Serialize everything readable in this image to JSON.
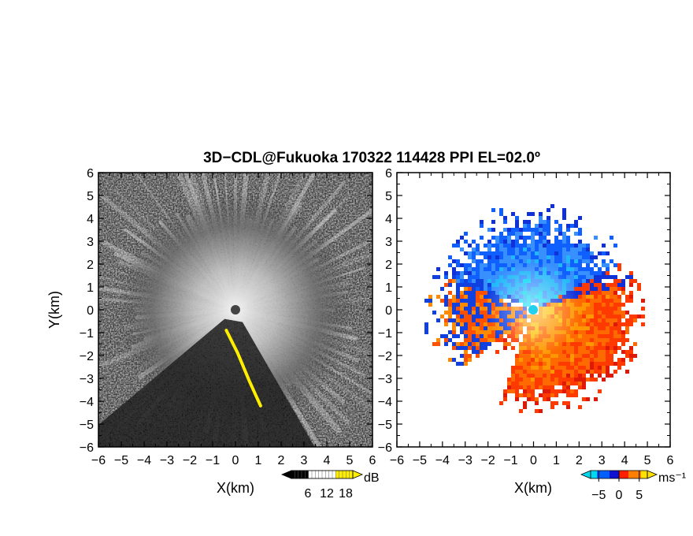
{
  "title": "3D−CDL@Fukuoka 170322 114428 PPI EL=02.0º",
  "chart_data": [
    {
      "type": "heatmap",
      "panel": "left",
      "field": "backscatter intensity (PPI)",
      "xlabel": "X(km)",
      "ylabel": "Y(km)",
      "xlim": [
        -6,
        6
      ],
      "ylim": [
        -6,
        6
      ],
      "xticks": [
        "−6",
        "−5",
        "−4",
        "−3",
        "−2",
        "−1",
        "0",
        "1",
        "2",
        "3",
        "4",
        "5",
        "6"
      ],
      "yticks": [
        "6",
        "5",
        "4",
        "3",
        "2",
        "1",
        "0",
        "−1",
        "−2",
        "−3",
        "−4",
        "−5",
        "−6"
      ],
      "colorbar": {
        "unit": "dB",
        "ticks": [
          "6",
          "12",
          "18"
        ],
        "colors": [
          "#000000",
          "#ffffff",
          "#ffee00"
        ]
      },
      "features": {
        "radar_center_km": [
          0,
          0
        ],
        "yellow_high_return_ridge_km": [
          [
            -0.4,
            -0.9
          ],
          [
            0.1,
            -1.9
          ],
          [
            0.6,
            -3.1
          ],
          [
            1.1,
            -4.2
          ]
        ],
        "shadow_sector_bearing_deg": [
          150,
          230
        ]
      }
    },
    {
      "type": "heatmap",
      "panel": "right",
      "field": "Doppler radial velocity (PPI)",
      "xlabel": "X(km)",
      "ylabel": "",
      "xlim": [
        -6,
        6
      ],
      "ylim": [
        -6,
        6
      ],
      "xticks": [
        "−6",
        "−5",
        "−4",
        "−3",
        "−2",
        "−1",
        "0",
        "1",
        "2",
        "3",
        "4",
        "5",
        "6"
      ],
      "yticks": [
        "6",
        "5",
        "4",
        "3",
        "2",
        "1",
        "0",
        "−1",
        "−2",
        "−3",
        "−4",
        "−5",
        "−6"
      ],
      "colorbar": {
        "unit": "ms⁻¹",
        "ticks": [
          "−5",
          "0",
          "5"
        ],
        "range": [
          -7,
          7
        ],
        "colors": [
          "#00d8f0",
          "#0060ff",
          "#1010d0",
          "#ff2000",
          "#ff8000",
          "#ffe000"
        ]
      },
      "features": {
        "approaching_sector_bearing_deg": [
          -70,
          60
        ],
        "receding_sector_bearing_deg": [
          80,
          200
        ],
        "max_range_km": 4.6
      }
    }
  ]
}
